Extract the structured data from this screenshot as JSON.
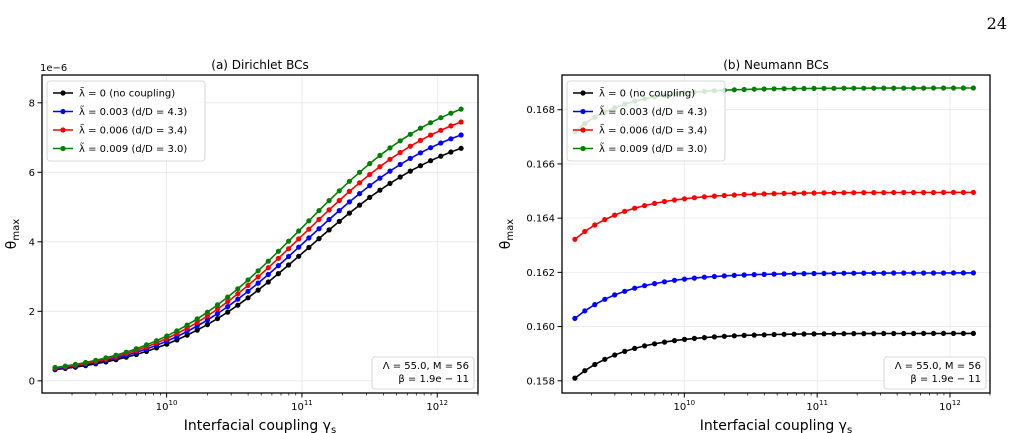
{
  "page_number": "24",
  "colors": {
    "black": "#000000",
    "blue": "#0000ff",
    "red": "#ff0000",
    "green": "#008000"
  },
  "chart_data": [
    {
      "type": "line",
      "title": "(a) Dirichlet BCs",
      "xlabel": "Interfacial coupling γ_s",
      "ylabel": "θ_max",
      "xscale": "log",
      "offset_text": "1e−6",
      "xlim": [
        1200000000.0,
        2000000000000.0
      ],
      "ylim": [
        -0.35,
        8.8
      ],
      "yticks": [
        0,
        2,
        4,
        6,
        8
      ],
      "ytick_labels": [
        "0",
        "2",
        "4",
        "6",
        "8"
      ],
      "xticks": [
        10000000000.0,
        100000000000.0,
        1000000000000.0
      ],
      "xtick_labels": [
        "10^10",
        "10^11",
        "10^12"
      ],
      "x_range": [
        1500000000.0,
        1500000000000.0
      ],
      "n_points": 41,
      "legend": "upper-left",
      "grid": true,
      "series": [
        {
          "name": "λ̃ = 0  (no coupling)",
          "color": "#000000",
          "low": 0.1,
          "high": 7.55,
          "mid": 110000000000.0,
          "width": 0.55
        },
        {
          "name": "λ̃ = 0.003  (d/D = 4.3)",
          "color": "#0000ff",
          "low": 0.1,
          "high": 7.95,
          "mid": 105000000000.0,
          "width": 0.55
        },
        {
          "name": "λ̃ = 0.006  (d/D = 3.4)",
          "color": "#ff0000",
          "low": 0.1,
          "high": 8.35,
          "mid": 102000000000.0,
          "width": 0.55
        },
        {
          "name": "λ̃ = 0.009  (d/D = 3.0)",
          "color": "#008000",
          "low": 0.1,
          "high": 8.75,
          "mid": 100000000000.0,
          "width": 0.55
        }
      ],
      "note_lines": [
        "Λ = 55.0,  M = 56",
        "β = 1.9e − 11"
      ]
    },
    {
      "type": "line",
      "title": "(b) Neumann BCs",
      "xlabel": "Interfacial coupling γ_s",
      "ylabel": "θ_max",
      "xscale": "log",
      "xlim": [
        1200000000.0,
        2000000000000.0
      ],
      "ylim": [
        0.15755,
        0.16928
      ],
      "yticks": [
        0.158,
        0.16,
        0.162,
        0.164,
        0.166,
        0.168
      ],
      "ytick_labels": [
        "0.158",
        "0.160",
        "0.162",
        "0.164",
        "0.166",
        "0.168"
      ],
      "xticks": [
        10000000000.0,
        100000000000.0,
        1000000000000.0
      ],
      "xtick_labels": [
        "10^10",
        "10^11",
        "10^12"
      ],
      "x_range": [
        1500000000.0,
        1500000000000.0
      ],
      "n_points": 41,
      "legend": "upper-left",
      "grid": true,
      "series": [
        {
          "name": "λ̃ = 0  (no coupling)",
          "color": "#000000",
          "start": 0.1581,
          "end": 0.15975,
          "k": 3.3
        },
        {
          "name": "λ̃ = 0.003  (d/D = 4.3)",
          "color": "#0000ff",
          "start": 0.1603,
          "end": 0.16198,
          "k": 3.3
        },
        {
          "name": "λ̃ = 0.006  (d/D = 3.4)",
          "color": "#ff0000",
          "start": 0.16322,
          "end": 0.16495,
          "k": 3.3
        },
        {
          "name": "λ̃ = 0.009  (d/D = 3.0)",
          "color": "#008000",
          "start": 0.1672,
          "end": 0.1688,
          "k": 3.6
        }
      ],
      "note_lines": [
        "Λ = 55.0,  M = 56",
        "β = 1.9e − 11"
      ]
    }
  ]
}
